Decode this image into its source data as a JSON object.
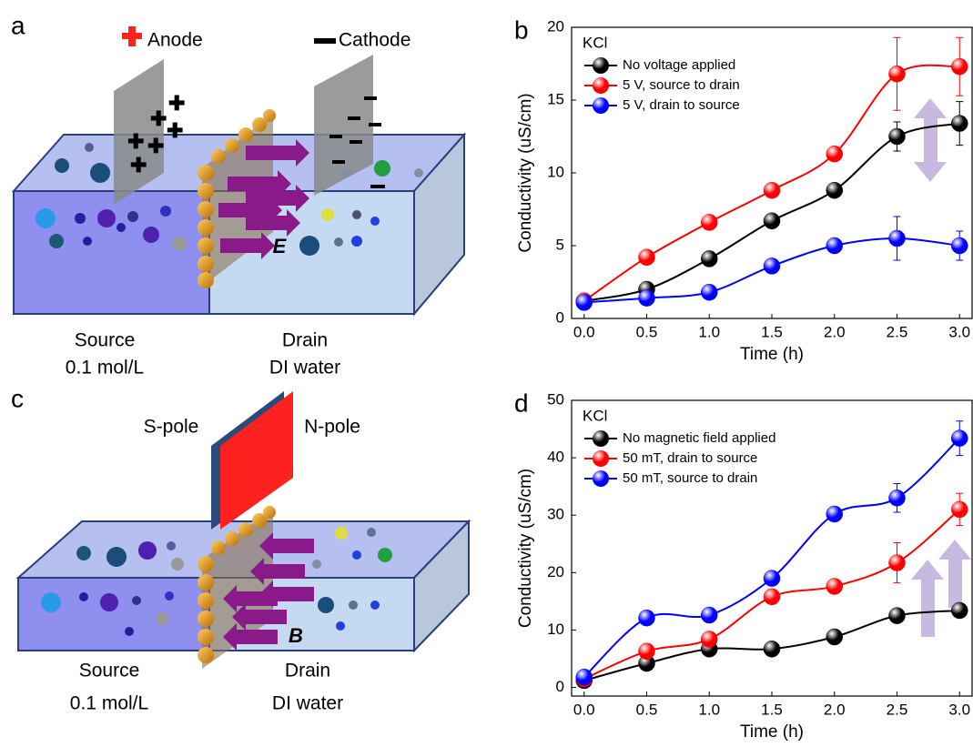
{
  "panels": [
    {
      "label": "a",
      "anode": "Anode",
      "cathode": "Cathode",
      "source": "Source",
      "source_conc": "0.1 mol/L",
      "drain": "Drain",
      "drain_liquid": "DI water",
      "field": "E"
    },
    {
      "label": "c",
      "s_pole": "S-pole",
      "n_pole": "N-pole",
      "source": "Source",
      "source_conc": "0.1 mol/L",
      "drain": "Drain",
      "drain_liquid": "DI water",
      "field": "B"
    }
  ],
  "chart_data": [
    {
      "type": "line",
      "panel": "b",
      "annotation": "KCl",
      "x_label": "Time (h)",
      "y_label": "Conductivity (uS/cm)",
      "x": [
        0,
        0.5,
        1,
        1.5,
        2,
        2.5,
        3
      ],
      "xlim": [
        -0.1,
        3.1
      ],
      "xticks": [
        {
          "value": 0,
          "label": "0.0"
        },
        {
          "value": 0.5,
          "label": "0.5"
        },
        {
          "value": 1,
          "label": "1.0"
        },
        {
          "value": 1.5,
          "label": "1.5"
        },
        {
          "value": 2,
          "label": "2.0"
        },
        {
          "value": 2.5,
          "label": "2.5"
        },
        {
          "value": 3,
          "label": "3.0"
        }
      ],
      "ylim": [
        0,
        20
      ],
      "yticks": [
        0,
        5,
        10,
        15,
        20
      ],
      "legend": "upper left",
      "series": [
        {
          "name": "No voltage applied",
          "color": "#000000",
          "values": [
            1.2,
            2.0,
            4.1,
            6.7,
            8.8,
            12.5,
            13.4
          ],
          "errors": [
            null,
            null,
            null,
            null,
            null,
            1.0,
            1.5
          ]
        },
        {
          "name": "5 V, source to drain",
          "color": "#ff0000",
          "values": [
            1.2,
            4.2,
            6.6,
            8.8,
            11.3,
            16.8,
            17.3
          ],
          "errors": [
            null,
            null,
            null,
            null,
            null,
            2.5,
            2.0
          ]
        },
        {
          "name": "5 V, drain to source",
          "color": "#0000ff",
          "values": [
            1.1,
            1.4,
            1.8,
            3.6,
            5.0,
            5.5,
            5.0
          ],
          "errors": [
            null,
            null,
            null,
            null,
            null,
            1.5,
            1.0
          ]
        }
      ]
    },
    {
      "type": "line",
      "panel": "d",
      "annotation": "KCl",
      "x_label": "Time (h)",
      "y_label": "Conductivity (uS/cm)",
      "x": [
        0,
        0.5,
        1,
        1.5,
        2,
        2.5,
        3
      ],
      "xlim": [
        -0.1,
        3.1
      ],
      "xticks": [
        {
          "value": 0,
          "label": "0.0"
        },
        {
          "value": 0.5,
          "label": "0.5"
        },
        {
          "value": 1,
          "label": "1.0"
        },
        {
          "value": 1.5,
          "label": "1.5"
        },
        {
          "value": 2,
          "label": "2.0"
        },
        {
          "value": 2.5,
          "label": "2.5"
        },
        {
          "value": 3,
          "label": "3.0"
        }
      ],
      "ylim": [
        -1.5,
        50
      ],
      "yticks": [
        0,
        10,
        20,
        30,
        40,
        50
      ],
      "legend": "upper left",
      "series": [
        {
          "name": "No magnetic field applied",
          "color": "#000000",
          "values": [
            1.2,
            4.2,
            6.7,
            6.7,
            8.8,
            12.5,
            13.4
          ],
          "errors": [
            null,
            null,
            null,
            null,
            null,
            null,
            null
          ]
        },
        {
          "name": "50 mT, drain to source",
          "color": "#ff0000",
          "values": [
            1.5,
            6.3,
            8.4,
            15.8,
            17.6,
            21.7,
            31.0
          ],
          "errors": [
            null,
            null,
            null,
            null,
            null,
            3.5,
            2.8
          ]
        },
        {
          "name": "50 mT, source to drain",
          "color": "#0000ff",
          "values": [
            1.8,
            12.1,
            12.6,
            19.0,
            30.2,
            33.0,
            43.4
          ],
          "errors": [
            null,
            null,
            null,
            null,
            null,
            2.5,
            3.0
          ]
        }
      ]
    }
  ]
}
